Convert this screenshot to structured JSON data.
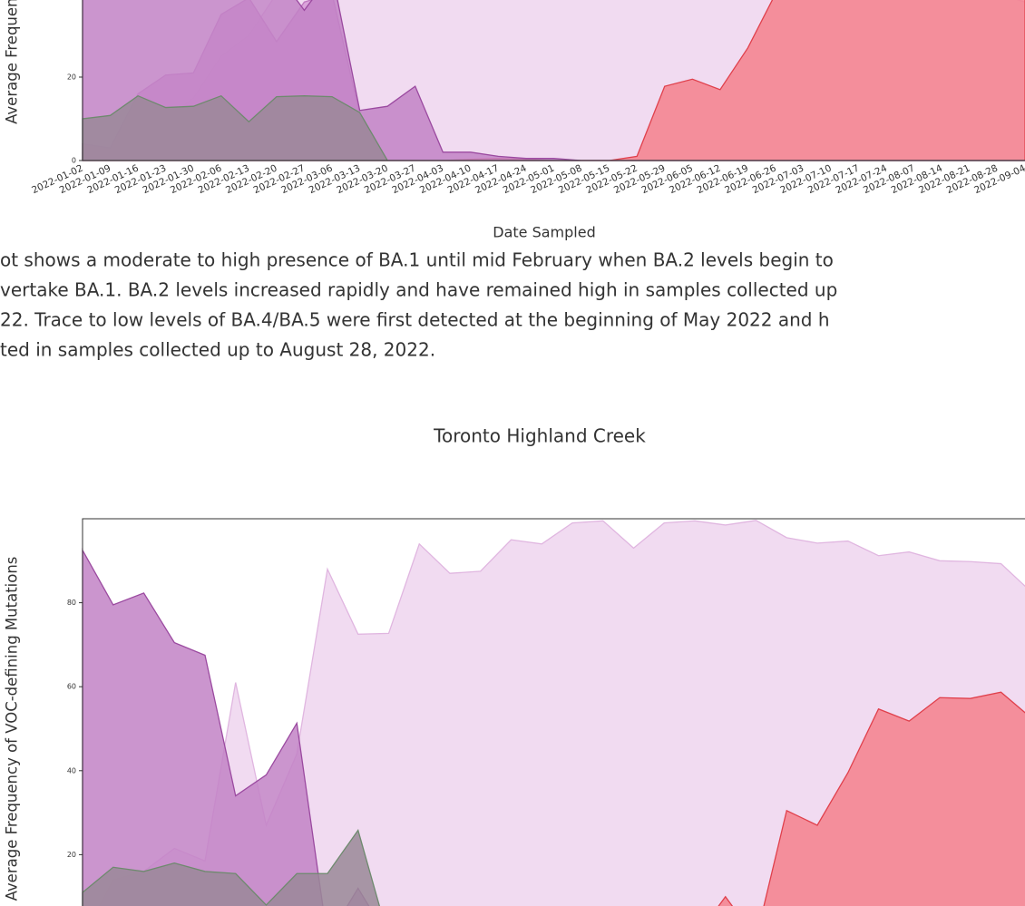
{
  "chart_data": [
    {
      "type": "area",
      "ylabel": "Average Frequency of VOC-defining Mutations",
      "xlabel": "Date Sampled",
      "categories": [
        "2022-01-02",
        "2022-01-09",
        "2022-01-16",
        "2022-01-23",
        "2022-01-30",
        "2022-02-06",
        "2022-02-13",
        "2022-02-20",
        "2022-02-27",
        "2022-03-06",
        "2022-03-13",
        "2022-03-20",
        "2022-03-27",
        "2022-04-03",
        "2022-04-10",
        "2022-04-17",
        "2022-04-24",
        "2022-05-01",
        "2022-05-08",
        "2022-05-15",
        "2022-05-22",
        "2022-05-29",
        "2022-06-05",
        "2022-06-12",
        "2022-06-19",
        "2022-06-26",
        "2022-07-03",
        "2022-07-10",
        "2022-07-17",
        "2022-07-24",
        "2022-08-07",
        "2022-08-14",
        "2022-08-21",
        "2022-08-28",
        "2022-09-04"
      ],
      "ylim": [
        0,
        100
      ],
      "yticks": [
        0,
        20
      ],
      "series": [
        {
          "color": "#efd5ef",
          "edgecolor": "#e0b6e0",
          "values": [
            2,
            3,
            5,
            10,
            15,
            25,
            30,
            40,
            50,
            60,
            75,
            85,
            90,
            95,
            97,
            98,
            98,
            99,
            99,
            98,
            97,
            95,
            90,
            85,
            80,
            75,
            70,
            65,
            60,
            55,
            50,
            45,
            42,
            40,
            38
          ]
        },
        {
          "color": "#f4808c",
          "edgecolor": "#e0404c",
          "values": [
            0,
            0,
            0,
            0,
            0,
            0,
            0,
            0,
            0,
            0,
            0,
            0,
            0,
            0,
            0.3,
            0.5,
            0.3,
            0,
            0,
            0,
            1,
            17.8,
            19.5,
            17,
            27,
            40,
            55,
            62,
            65,
            68,
            70,
            72,
            74,
            75,
            76
          ]
        },
        {
          "color": "#d69ad6",
          "edgecolor": "#c078c0",
          "values": [
            4,
            3,
            16,
            20.5,
            21,
            35,
            39,
            28.5,
            38,
            40,
            11,
            0,
            0,
            0,
            0,
            0,
            0,
            0,
            0,
            0,
            0,
            0,
            0,
            0,
            0,
            0,
            0,
            0,
            0,
            0,
            0,
            0,
            0,
            0,
            0
          ]
        },
        {
          "color": "#c283c6",
          "edgecolor": "#9b4aa0",
          "values": [
            50,
            48,
            45,
            45,
            42,
            45,
            45,
            45,
            36,
            45,
            12,
            13,
            17.8,
            2,
            2,
            1,
            0.5,
            0.5,
            0,
            0,
            0,
            0,
            0,
            0,
            0,
            0,
            0,
            0,
            0,
            0,
            0,
            0,
            0,
            0,
            0
          ]
        },
        {
          "color": "#9a8898",
          "edgecolor": "#6e8a6e",
          "values": [
            10,
            10.8,
            15.5,
            12.7,
            13,
            15.5,
            9.3,
            15.3,
            15.5,
            15.3,
            11.5,
            0,
            0,
            0,
            0,
            0,
            0,
            0,
            0,
            0,
            0,
            0,
            0,
            0,
            0,
            0,
            0,
            0,
            0,
            0,
            0,
            0,
            0,
            0,
            0
          ]
        }
      ]
    },
    {
      "type": "area",
      "title": "Toronto Highland Creek",
      "ylabel": "Average Frequency of VOC-defining Mutations",
      "ylim": [
        0,
        100
      ],
      "yticks": [
        20,
        40,
        60,
        80
      ],
      "series": [
        {
          "color": "#efd5ef",
          "edgecolor": "#e0b6e0",
          "values": [
            0,
            14,
            16,
            21.5,
            18.5,
            61,
            27,
            44,
            88,
            72.5,
            72.7,
            94,
            87,
            87.5,
            95,
            94,
            99,
            99.5,
            93,
            99,
            99.5,
            98.5,
            99.6,
            95.5,
            94.2,
            94.7,
            91.2,
            92.1,
            90,
            89.8,
            89.3,
            82.5
          ]
        },
        {
          "color": "#f4808c",
          "edgecolor": "#e0404c",
          "values": [
            0,
            0,
            0,
            0,
            0,
            0,
            0,
            0,
            0,
            0,
            0,
            0,
            0,
            0,
            0,
            0,
            0,
            0,
            0,
            0,
            0,
            10,
            0,
            30.5,
            27,
            39.5,
            54.7,
            51.8,
            57.4,
            57.2,
            58.7,
            52.5
          ]
        },
        {
          "color": "#c283c6",
          "edgecolor": "#9b4aa0",
          "values": [
            92.5,
            79.5,
            82.3,
            70.5,
            67.5,
            34,
            39,
            51.3,
            0,
            12,
            0,
            0,
            0,
            0,
            0,
            0,
            0,
            0,
            0,
            0,
            0,
            0,
            0,
            0,
            0,
            0,
            0,
            0,
            0,
            0,
            0,
            0
          ]
        },
        {
          "color": "#9a8898",
          "edgecolor": "#6e8a6e",
          "values": [
            11,
            17,
            16,
            18,
            16,
            15.5,
            8,
            15.5,
            15.5,
            25.8,
            0,
            0,
            0,
            0,
            0,
            0,
            0,
            0,
            0,
            0,
            0,
            0,
            0,
            0,
            0,
            0,
            0,
            0,
            0,
            0,
            0,
            0
          ]
        }
      ]
    }
  ],
  "paragraph": [
    "ot shows a moderate to high presence of BA.1 until mid February when BA.2 levels begin to",
    "vertake BA.1. BA.2 levels increased rapidly and have remained high in samples collected up",
    "22. Trace to low levels of BA.4/BA.5 were first detected at the beginning of May 2022 and h",
    "ted in samples collected up to August 28, 2022."
  ]
}
